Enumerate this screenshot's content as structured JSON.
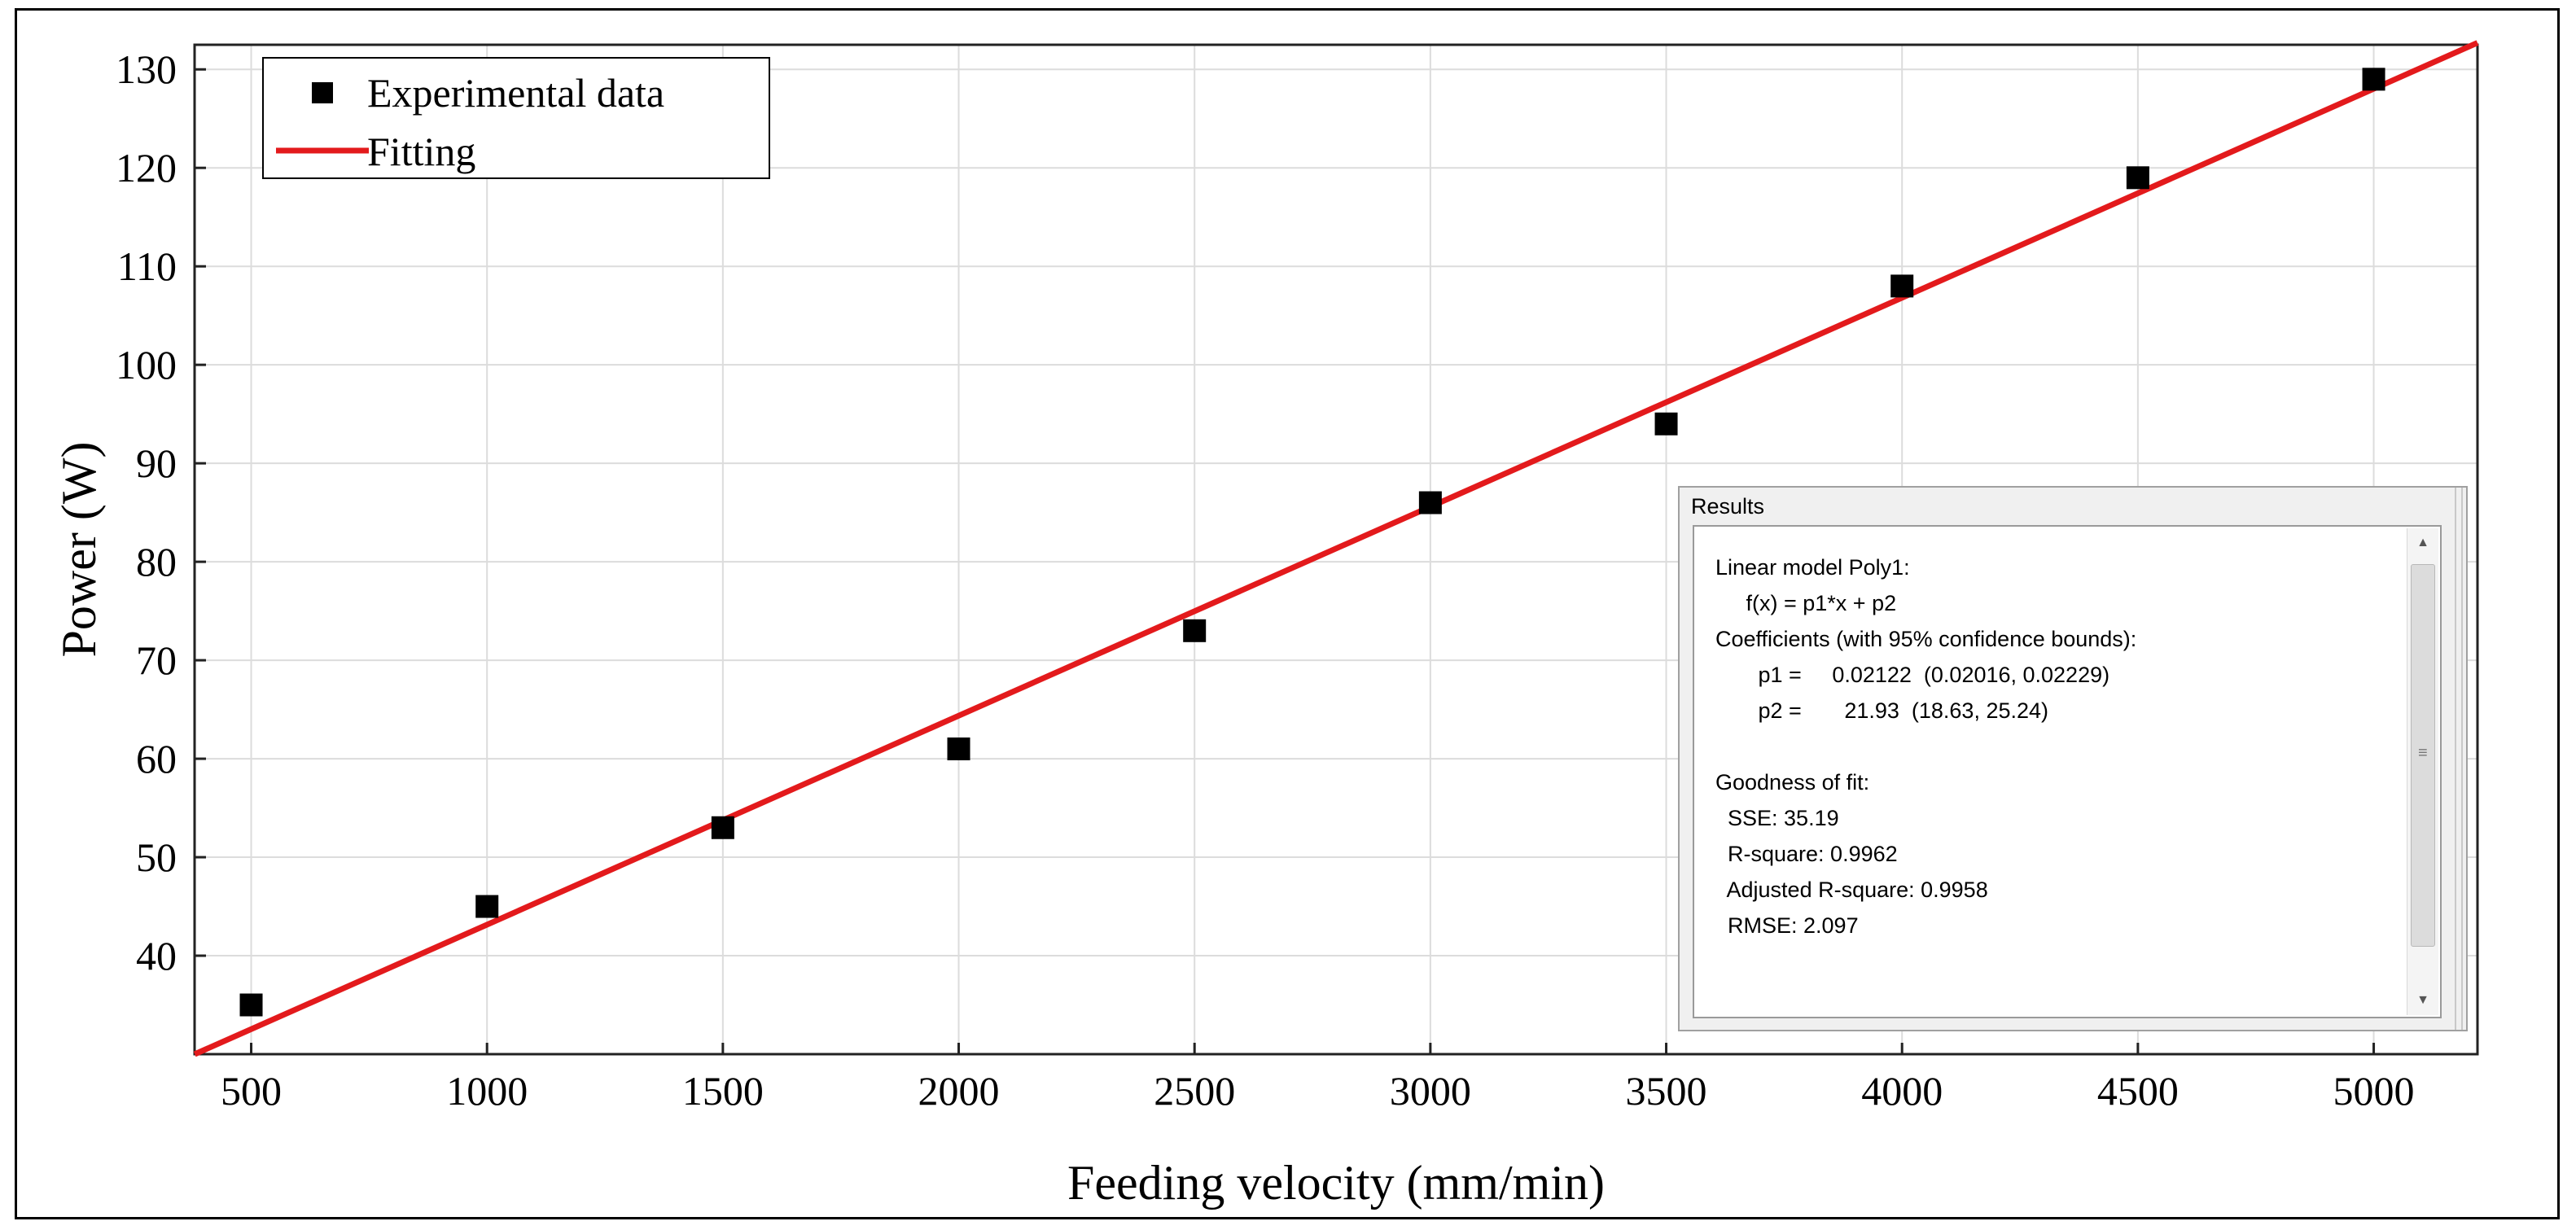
{
  "chart_data": {
    "type": "scatter",
    "title": "",
    "xlabel": "Feeding velocity (mm/min)",
    "ylabel": "Power (W)",
    "xlim": [
      380,
      5220
    ],
    "ylim": [
      30,
      132.5
    ],
    "xticks": [
      500,
      1000,
      1500,
      2000,
      2500,
      3000,
      3500,
      4000,
      4500,
      5000
    ],
    "yticks": [
      40,
      50,
      60,
      70,
      80,
      90,
      100,
      110,
      120,
      130
    ],
    "grid": true,
    "legend_position": "top-left",
    "series": [
      {
        "name": "Experimental data",
        "marker": "square",
        "color": "#000000",
        "x": [
          500,
          1000,
          1500,
          2000,
          2500,
          3000,
          3500,
          4000,
          4500,
          5000
        ],
        "y": [
          35,
          45,
          53,
          61,
          73,
          86,
          94,
          108,
          119,
          129
        ]
      },
      {
        "name": "Fitting",
        "kind": "line",
        "color": "#e31a1c",
        "slope": 0.02122,
        "intercept": 21.93
      }
    ]
  },
  "results": {
    "title": "Results",
    "lines": [
      "Linear model Poly1:",
      "     f(x) = p1*x + p2",
      "Coefficients (with 95% confidence bounds):",
      "       p1 =     0.02122  (0.02016, 0.02229)",
      "       p2 =       21.93  (18.63, 25.24)",
      "",
      "Goodness of fit:",
      "  SSE: 35.19",
      "  R-square: 0.9962",
      "  Adjusted R-square: 0.9958",
      "  RMSE: 2.097"
    ]
  },
  "scrollbar": {
    "up_icon": "▲",
    "down_icon": "▼",
    "grip_icon": "≡"
  }
}
